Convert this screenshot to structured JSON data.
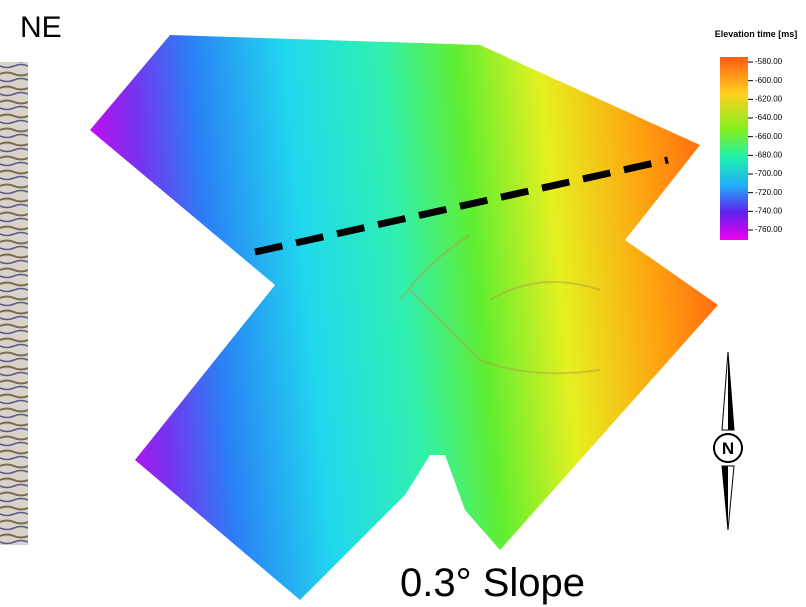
{
  "corner_label": "NE",
  "legend": {
    "title": "Elevation time [ms]",
    "ticks": [
      {
        "value": -580,
        "label": "-580.00"
      },
      {
        "value": -600,
        "label": "-600.00"
      },
      {
        "value": -620,
        "label": "-620.00"
      },
      {
        "value": -640,
        "label": "-640.00"
      },
      {
        "value": -660,
        "label": "-660.00"
      },
      {
        "value": -680,
        "label": "-680.00"
      },
      {
        "value": -700,
        "label": "-700.00"
      },
      {
        "value": -720,
        "label": "-720.00"
      },
      {
        "value": -740,
        "label": "-740.00"
      },
      {
        "value": -760,
        "label": "-760.00"
      }
    ]
  },
  "north_label": "N",
  "annotation": "0.3° Slope"
}
